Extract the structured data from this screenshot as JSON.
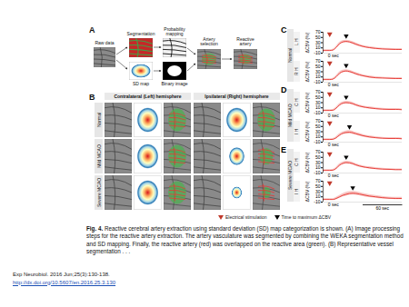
{
  "figure": {
    "panel_a": {
      "label": "A",
      "steps": [
        "Raw data",
        "Segmentation",
        "SD map",
        "Probability mapping",
        "Binary image",
        "Artery selection",
        "Reactive artery"
      ]
    },
    "panel_b": {
      "label": "B",
      "columns": [
        "Contralateral (Left) hemisphere",
        "Ipsilateral (Right) hemisphere"
      ],
      "rows": [
        "Normal",
        "Mild MCAO",
        "Severe MCAO"
      ]
    },
    "panels_cde": [
      {
        "label": "C",
        "group": "Normal"
      },
      {
        "label": "D",
        "group": "Mild MCAO"
      },
      {
        "label": "E",
        "group": "Severe MCAO"
      }
    ],
    "stimulus": {
      "time": 0,
      "label": "0 sec"
    },
    "scale_bar": {
      "value": 60,
      "label": "60 sec"
    },
    "legend": [
      {
        "label": "Electrical stimulation",
        "color": "#c0392b"
      },
      {
        "label": "Time to maximum ΔCBV",
        "color": "#000000"
      }
    ]
  },
  "chart_data": [
    {
      "type": "line",
      "group": "Normal",
      "title": "L H",
      "x": [
        -10,
        -5,
        0,
        5,
        10,
        15,
        20,
        25,
        30,
        35,
        40,
        50,
        60,
        70,
        80,
        90,
        100,
        110
      ],
      "values": [
        0,
        0,
        0,
        2,
        12,
        26,
        33,
        35,
        33,
        29,
        24,
        16,
        11,
        8,
        6,
        5,
        4,
        4
      ],
      "error": [
        3,
        3,
        3,
        3,
        4,
        5,
        5,
        5,
        5,
        5,
        5,
        4,
        4,
        4,
        3,
        3,
        3,
        3
      ],
      "color": "#e8413c",
      "xlim": [
        -10,
        110
      ],
      "ylim": [
        -10,
        70
      ],
      "yticks": [
        -10,
        10,
        30,
        50,
        70
      ],
      "ylabel": "ΔCBV (%)",
      "tick_labels": "y"
    },
    {
      "type": "line",
      "group": "Normal",
      "title": "R H",
      "x": [
        -10,
        -5,
        0,
        5,
        10,
        15,
        20,
        25,
        30,
        35,
        40,
        50,
        60,
        70,
        80,
        90,
        100,
        110
      ],
      "values": [
        0,
        0,
        0,
        2,
        11,
        24,
        31,
        33,
        31,
        27,
        22,
        15,
        10,
        7,
        6,
        5,
        4,
        4
      ],
      "error": [
        3,
        3,
        3,
        3,
        4,
        5,
        5,
        5,
        5,
        5,
        5,
        4,
        4,
        4,
        3,
        3,
        3,
        3
      ],
      "color": "#e8413c",
      "xlim": [
        -10,
        110
      ],
      "ylim": [
        -10,
        70
      ],
      "yticks": [
        -10,
        10,
        30,
        50,
        70
      ],
      "ylabel": "ΔCBV (%)",
      "tick_labels": "y"
    },
    {
      "type": "line",
      "group": "Mild MCAO",
      "title": "C H",
      "x": [
        -10,
        -5,
        0,
        5,
        10,
        15,
        20,
        25,
        30,
        35,
        40,
        50,
        60,
        70,
        80,
        90,
        100,
        110
      ],
      "values": [
        0,
        0,
        0,
        1,
        9,
        21,
        28,
        30,
        29,
        26,
        21,
        14,
        10,
        7,
        5,
        4,
        4,
        3
      ],
      "error": [
        3,
        3,
        3,
        3,
        4,
        5,
        5,
        5,
        5,
        5,
        5,
        4,
        4,
        4,
        3,
        3,
        3,
        3
      ],
      "color": "#e8413c",
      "xlim": [
        -10,
        110
      ],
      "ylim": [
        -10,
        70
      ],
      "yticks": [
        -10,
        10,
        30,
        50,
        70
      ],
      "ylabel": "ΔCBV (%)",
      "tick_labels": "y"
    },
    {
      "type": "line",
      "group": "Mild MCAO",
      "title": "I H",
      "x": [
        -10,
        -5,
        0,
        5,
        10,
        15,
        20,
        25,
        30,
        35,
        40,
        50,
        60,
        70,
        80,
        90,
        100,
        110
      ],
      "values": [
        0,
        0,
        0,
        1,
        7,
        17,
        24,
        27,
        28,
        26,
        22,
        15,
        10,
        7,
        5,
        4,
        4,
        3
      ],
      "error": [
        3,
        3,
        3,
        3,
        4,
        5,
        5,
        6,
        6,
        6,
        5,
        5,
        4,
        4,
        3,
        3,
        3,
        3
      ],
      "color": "#e8413c",
      "xlim": [
        -10,
        110
      ],
      "ylim": [
        -10,
        70
      ],
      "yticks": [
        -10,
        10,
        30,
        50,
        70
      ],
      "ylabel": "ΔCBV (%)",
      "tick_labels": "y"
    },
    {
      "type": "line",
      "group": "Severe MCAO",
      "title": "C H",
      "x": [
        -10,
        -5,
        0,
        5,
        10,
        15,
        20,
        25,
        30,
        35,
        40,
        50,
        60,
        70,
        80,
        90,
        100,
        110
      ],
      "values": [
        0,
        0,
        0,
        1,
        8,
        20,
        27,
        30,
        29,
        26,
        21,
        14,
        10,
        7,
        5,
        4,
        3,
        3
      ],
      "error": [
        3,
        3,
        3,
        3,
        4,
        5,
        5,
        5,
        5,
        5,
        5,
        4,
        4,
        4,
        3,
        3,
        3,
        3
      ],
      "color": "#e8413c",
      "xlim": [
        -10,
        110
      ],
      "ylim": [
        -10,
        70
      ],
      "yticks": [
        -10,
        10,
        30,
        50,
        70
      ],
      "ylabel": "ΔCBV (%)",
      "tick_labels": "y"
    },
    {
      "type": "line",
      "group": "Severe MCAO",
      "title": "I H",
      "x": [
        -10,
        -5,
        0,
        5,
        10,
        15,
        20,
        25,
        30,
        35,
        40,
        50,
        60,
        70,
        80,
        90,
        100,
        110
      ],
      "values": [
        0,
        0,
        0,
        0,
        4,
        10,
        16,
        20,
        23,
        24,
        23,
        18,
        13,
        10,
        7,
        5,
        4,
        4
      ],
      "error": [
        3,
        3,
        3,
        3,
        4,
        5,
        6,
        7,
        7,
        7,
        7,
        6,
        6,
        5,
        5,
        4,
        4,
        4
      ],
      "color": "#e8413c",
      "xlim": [
        -10,
        110
      ],
      "ylim": [
        -10,
        70
      ],
      "yticks": [
        -10,
        10,
        30,
        50,
        70
      ],
      "ylabel": "ΔCBV (%)",
      "tick_labels": "y"
    }
  ],
  "caption": {
    "lead": "Fig. 4.",
    "text": "Reactive cerebral artery extraction using standard deviation (SD) map categorization is shown. (A) Image processing steps for the reactive artery extraction. The artery vasculature was segmented by combining the WEKA segmentation method and SD mapping. Finally, the reactive artery (red) was overlapped on the reactive area (green). (B) Representative vessel segmentation . . ."
  },
  "citation": {
    "journal": "Exp Neurobiol. 2016 Jun;25(3):130-138.",
    "url": "http://dx.doi.org/10.5607/en.2016.25.3.130"
  }
}
